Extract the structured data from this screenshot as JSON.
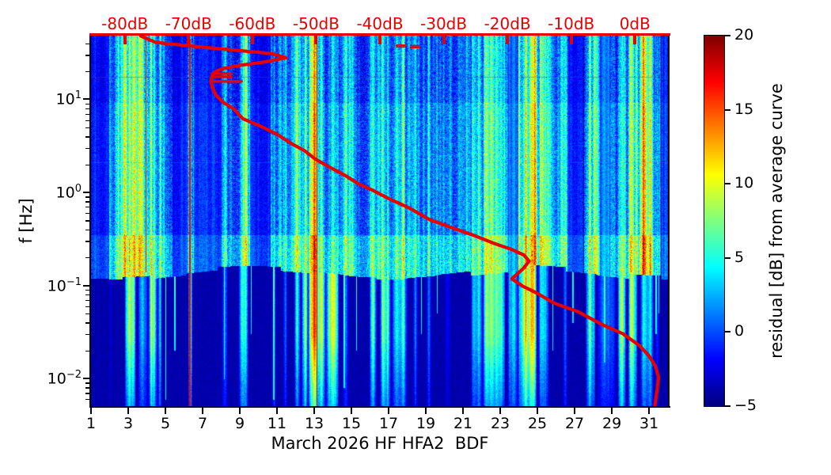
{
  "figure": {
    "colors": {
      "background": "#ffffff",
      "axis": "#000000",
      "accent_red": "#e80000",
      "text": "#000000"
    }
  },
  "plot": {
    "x_axis": {
      "label": "March 2026 HF HFA2  BDF",
      "tick_labels": [
        "1",
        "3",
        "5",
        "7",
        "9",
        "11",
        "13",
        "15",
        "17",
        "19",
        "21",
        "23",
        "25",
        "27",
        "29",
        "31"
      ],
      "tick_days": [
        1,
        3,
        5,
        7,
        9,
        11,
        13,
        15,
        17,
        19,
        21,
        23,
        25,
        27,
        29,
        31
      ],
      "range_days": [
        1,
        32.06
      ]
    },
    "y_axis": {
      "label": "f [Hz]",
      "scale": "log",
      "range_hz": [
        0.00504,
        48.4
      ],
      "major_ticks": [
        {
          "base": "10",
          "exp": "1",
          "hz": 10
        },
        {
          "base": "10",
          "exp": "0",
          "hz": 1
        },
        {
          "base": "10",
          "exp": "−1",
          "hz": 0.1
        },
        {
          "base": "10",
          "exp": "−2",
          "hz": 0.01
        }
      ]
    },
    "top_axis": {
      "color": "#e80000",
      "tick_labels": [
        "-80dB",
        "-70dB",
        "-60dB",
        "-50dB",
        "-40dB",
        "-30dB",
        "-20dB",
        "-10dB",
        "0dB"
      ],
      "tick_values_db": [
        -80,
        -70,
        -60,
        -50,
        -40,
        -30,
        -20,
        -10,
        0
      ],
      "range_db": [
        -85.3,
        5.3
      ]
    }
  },
  "colorbar": {
    "label": "residual [dB] from average curve",
    "tick_labels": [
      "20",
      "15",
      "10",
      "5",
      "0",
      "−5"
    ],
    "tick_values": [
      20,
      15,
      10,
      5,
      0,
      -5
    ],
    "range": [
      -5,
      20
    ],
    "colormap": "jet"
  },
  "chart_data": {
    "type": "heatmap",
    "title": "",
    "xlabel": "March 2026 HF HFA2  BDF",
    "ylabel": "f [Hz]",
    "x_range_days": [
      1,
      32.06
    ],
    "y_range_hz": [
      0.00504,
      48.4
    ],
    "y_scale": "log",
    "value_range_db": [
      -5,
      20
    ],
    "colormap": "jet",
    "top_axis_db_range": [
      -85.3,
      5.3
    ],
    "band_boundary_hz": 0.135,
    "cyan_band_hz": [
      0.135,
      0.35
    ],
    "events": [
      {
        "days": [
          1.95,
          2.15
        ],
        "upper": 4,
        "lower": 2
      },
      {
        "days": [
          2.2,
          4.4
        ],
        "upper": 9,
        "lower": 0
      },
      {
        "days": [
          2.8,
          3.4
        ],
        "upper": 10,
        "lower": 17
      },
      {
        "days": [
          3.5,
          4.05
        ],
        "upper": 9,
        "lower": 8
      },
      {
        "days": [
          4.05,
          4.55
        ],
        "upper": 8,
        "lower": 16
      },
      {
        "days": [
          4.55,
          4.8
        ],
        "upper": 5,
        "lower": 12
      },
      {
        "days": [
          6.2,
          6.45
        ],
        "upper": 4,
        "lower": 18
      },
      {
        "days": [
          8.0,
          8.35
        ],
        "upper": 4,
        "lower": 6
      },
      {
        "days": [
          8.9,
          9.45
        ],
        "upper": 5,
        "lower": 11
      },
      {
        "days": [
          10.7,
          10.95
        ],
        "upper": 5,
        "lower": 10
      },
      {
        "days": [
          11.3,
          11.55
        ],
        "upper": 4,
        "lower": 8
      },
      {
        "days": [
          11.9,
          12.25
        ],
        "upper": 5,
        "lower": 12
      },
      {
        "days": [
          12.3,
          12.65
        ],
        "upper": 6,
        "lower": 18
      },
      {
        "days": [
          12.65,
          13.6
        ],
        "upper": 12,
        "lower": 20
      },
      {
        "days": [
          12.98,
          13.32
        ],
        "upper": 17,
        "lower": 20
      },
      {
        "days": [
          13.6,
          14.3
        ],
        "upper": 6,
        "lower": 18
      },
      {
        "days": [
          14.5,
          14.85
        ],
        "upper": 6,
        "lower": 7
      },
      {
        "days": [
          15.95,
          16.35
        ],
        "upper": 7,
        "lower": 16
      },
      {
        "days": [
          16.5,
          17.1
        ],
        "upper": 8,
        "lower": 15
      },
      {
        "days": [
          17.15,
          18.0
        ],
        "upper": 6,
        "lower": 10
      },
      {
        "days": [
          18.3,
          18.55
        ],
        "upper": 5,
        "lower": 9
      },
      {
        "days": [
          19.0,
          19.3
        ],
        "upper": 5,
        "lower": 7
      },
      {
        "days": [
          20.0,
          20.3
        ],
        "upper": 4,
        "lower": 4
      },
      {
        "days": [
          21.4,
          22.05
        ],
        "upper": 6,
        "lower": 10
      },
      {
        "days": [
          22.05,
          23.25
        ],
        "upper": 9,
        "lower": 17
      },
      {
        "days": [
          23.35,
          23.95
        ],
        "upper": 3,
        "lower": 9
      },
      {
        "days": [
          23.95,
          24.95
        ],
        "upper": 10,
        "lower": 18
      },
      {
        "days": [
          25.0,
          25.6
        ],
        "upper": 7,
        "lower": 10
      },
      {
        "days": [
          26.35,
          26.6
        ],
        "upper": 5,
        "lower": 8
      },
      {
        "days": [
          27.55,
          28.1
        ],
        "upper": 6,
        "lower": 13
      },
      {
        "days": [
          28.2,
          29.2
        ],
        "upper": 5,
        "lower": 6
      },
      {
        "days": [
          29.3,
          29.75
        ],
        "upper": 8,
        "lower": 17
      },
      {
        "days": [
          29.85,
          30.35
        ],
        "upper": 8,
        "lower": 16
      },
      {
        "days": [
          30.5,
          31.25
        ],
        "upper": 9,
        "lower": 9
      },
      {
        "days": [
          31.3,
          31.55
        ],
        "upper": 4,
        "lower": 6
      }
    ],
    "dark_bands_days": [
      [
        1.0,
        1.95
      ],
      [
        5.35,
        6.15
      ],
      [
        6.5,
        8.0
      ],
      [
        9.55,
        10.65
      ],
      [
        23.4,
        23.95
      ],
      [
        26.6,
        27.45
      ],
      [
        28.35,
        28.9
      ],
      [
        31.55,
        32.06
      ]
    ],
    "thin_streaks": [
      {
        "day": 5.0,
        "db": 6.5,
        "down_to_hz": 0.006
      },
      {
        "day": 5.5,
        "db": 6,
        "down_to_hz": 0.02
      },
      {
        "day": 8.15,
        "db": 6,
        "down_to_hz": 0.01
      },
      {
        "day": 9.6,
        "db": 5.5,
        "down_to_hz": 0.03
      },
      {
        "day": 10.8,
        "db": 7,
        "down_to_hz": 0.006
      },
      {
        "day": 14.6,
        "db": 6.5,
        "down_to_hz": 0.008
      },
      {
        "day": 15.25,
        "db": 6,
        "down_to_hz": 0.02
      },
      {
        "day": 18.75,
        "db": 5.5,
        "down_to_hz": 0.03
      },
      {
        "day": 19.6,
        "db": 5,
        "down_to_hz": 0.05
      },
      {
        "day": 25.8,
        "db": 5.5,
        "down_to_hz": 0.02
      },
      {
        "day": 26.9,
        "db": 5,
        "down_to_hz": 0.04
      },
      {
        "day": 28.6,
        "db": 6,
        "down_to_hz": 0.015
      },
      {
        "day": 31.35,
        "db": 6,
        "down_to_hz": 0.03
      },
      {
        "day": 31.5,
        "db": 5.5,
        "down_to_hz": 0.05
      }
    ],
    "red_lines": [
      {
        "day": 3.95,
        "db": 18,
        "hz_range": [
          0.14,
          45
        ]
      },
      {
        "day": 6.3,
        "db": 18,
        "hz_range": [
          0.005,
          45
        ]
      },
      {
        "day": 13.12,
        "db": 20,
        "hz_range": [
          0.005,
          48
        ]
      }
    ],
    "dark_lines_days": [
      27.47,
      31.62
    ],
    "average_curve": {
      "color": "#e80000",
      "description": "average spectrum level in dB (top axis) versus frequency",
      "points_db_hz": [
        [
          -77.5,
          48
        ],
        [
          -75.2,
          41
        ],
        [
          -69.8,
          37.5
        ],
        [
          -63.2,
          34
        ],
        [
          -57.0,
          31
        ],
        [
          -54.7,
          28
        ],
        [
          -57.8,
          25.4
        ],
        [
          -62.4,
          23
        ],
        [
          -64.8,
          21.2
        ],
        [
          -65.7,
          20
        ],
        [
          -66.3,
          18.2
        ],
        [
          -66.5,
          15.6
        ],
        [
          -66.3,
          13.6
        ],
        [
          -65.7,
          11.1
        ],
        [
          -64.5,
          9.2
        ],
        [
          -63.0,
          8.0
        ],
        [
          -61.5,
          6.2
        ],
        [
          -58.6,
          5.1
        ],
        [
          -56.1,
          4.2
        ],
        [
          -53.7,
          3.3
        ],
        [
          -51.8,
          2.8
        ],
        [
          -50.2,
          2.3
        ],
        [
          -48.1,
          1.9
        ],
        [
          -45.3,
          1.5
        ],
        [
          -43.4,
          1.24
        ],
        [
          -41.2,
          1.06
        ],
        [
          -38.8,
          0.87
        ],
        [
          -35.4,
          0.68
        ],
        [
          -32.2,
          0.51
        ],
        [
          -28.8,
          0.42
        ],
        [
          -25.5,
          0.35
        ],
        [
          -22.2,
          0.285
        ],
        [
          -19.3,
          0.243
        ],
        [
          -17.4,
          0.212
        ],
        [
          -16.6,
          0.182
        ],
        [
          -17.6,
          0.15
        ],
        [
          -19.3,
          0.118
        ],
        [
          -17.6,
          0.098
        ],
        [
          -15.5,
          0.0835
        ],
        [
          -12.7,
          0.0646
        ],
        [
          -8.9,
          0.0521
        ],
        [
          -5.2,
          0.0381
        ],
        [
          -1.9,
          0.0303
        ],
        [
          0.7,
          0.0226
        ],
        [
          2.2,
          0.0175
        ],
        [
          3.2,
          0.0136
        ],
        [
          3.7,
          0.0103
        ],
        [
          3.5,
          0.0077
        ],
        [
          3.1,
          0.005
        ]
      ],
      "spikes": [
        {
          "hz": 18.9,
          "db": [
            -66.3,
            -63.3
          ]
        },
        {
          "hz": 17.5,
          "db": [
            -66.3,
            -63.3
          ]
        },
        {
          "hz": 15.6,
          "db": [
            -66.5,
            -61.7
          ]
        }
      ],
      "detached_marks": [
        {
          "hz": 38.2,
          "db": [
            -37.4,
            -36.0
          ]
        },
        {
          "hz": 36.6,
          "db": [
            -37.4,
            -36.0
          ]
        },
        {
          "hz": 37.7,
          "db": [
            -35.2,
            -33.8
          ]
        },
        {
          "hz": 36.1,
          "db": [
            -35.2,
            -33.8
          ]
        }
      ]
    }
  }
}
